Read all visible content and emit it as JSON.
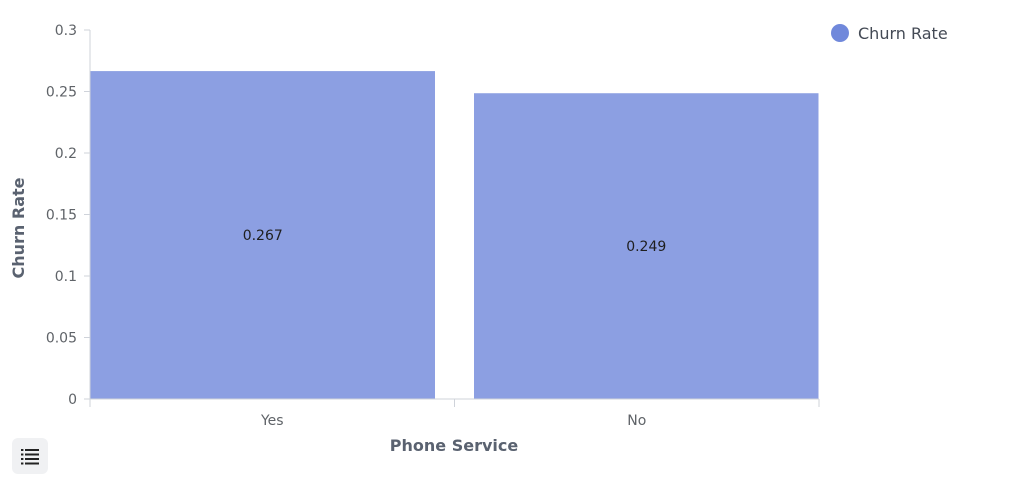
{
  "chart_data": {
    "type": "bar",
    "categories": [
      "Yes",
      "No"
    ],
    "series": [
      {
        "name": "Churn Rate",
        "values": [
          0.267,
          0.249
        ]
      }
    ],
    "data_labels": [
      "0.267",
      "0.249"
    ],
    "xlabel": "Phone Service",
    "ylabel": "Churn Rate",
    "ylim": [
      0,
      0.3
    ],
    "yticks": [
      "0",
      "0.05",
      "0.1",
      "0.15",
      "0.2",
      "0.25",
      "0.3"
    ],
    "grid": false,
    "legend_position": "top-right"
  },
  "colors": {
    "bar": "#8c9fe2",
    "legend_marker": "#7088db",
    "axis": "#cfd3da"
  },
  "controls": {
    "list_icon": "list-icon"
  }
}
